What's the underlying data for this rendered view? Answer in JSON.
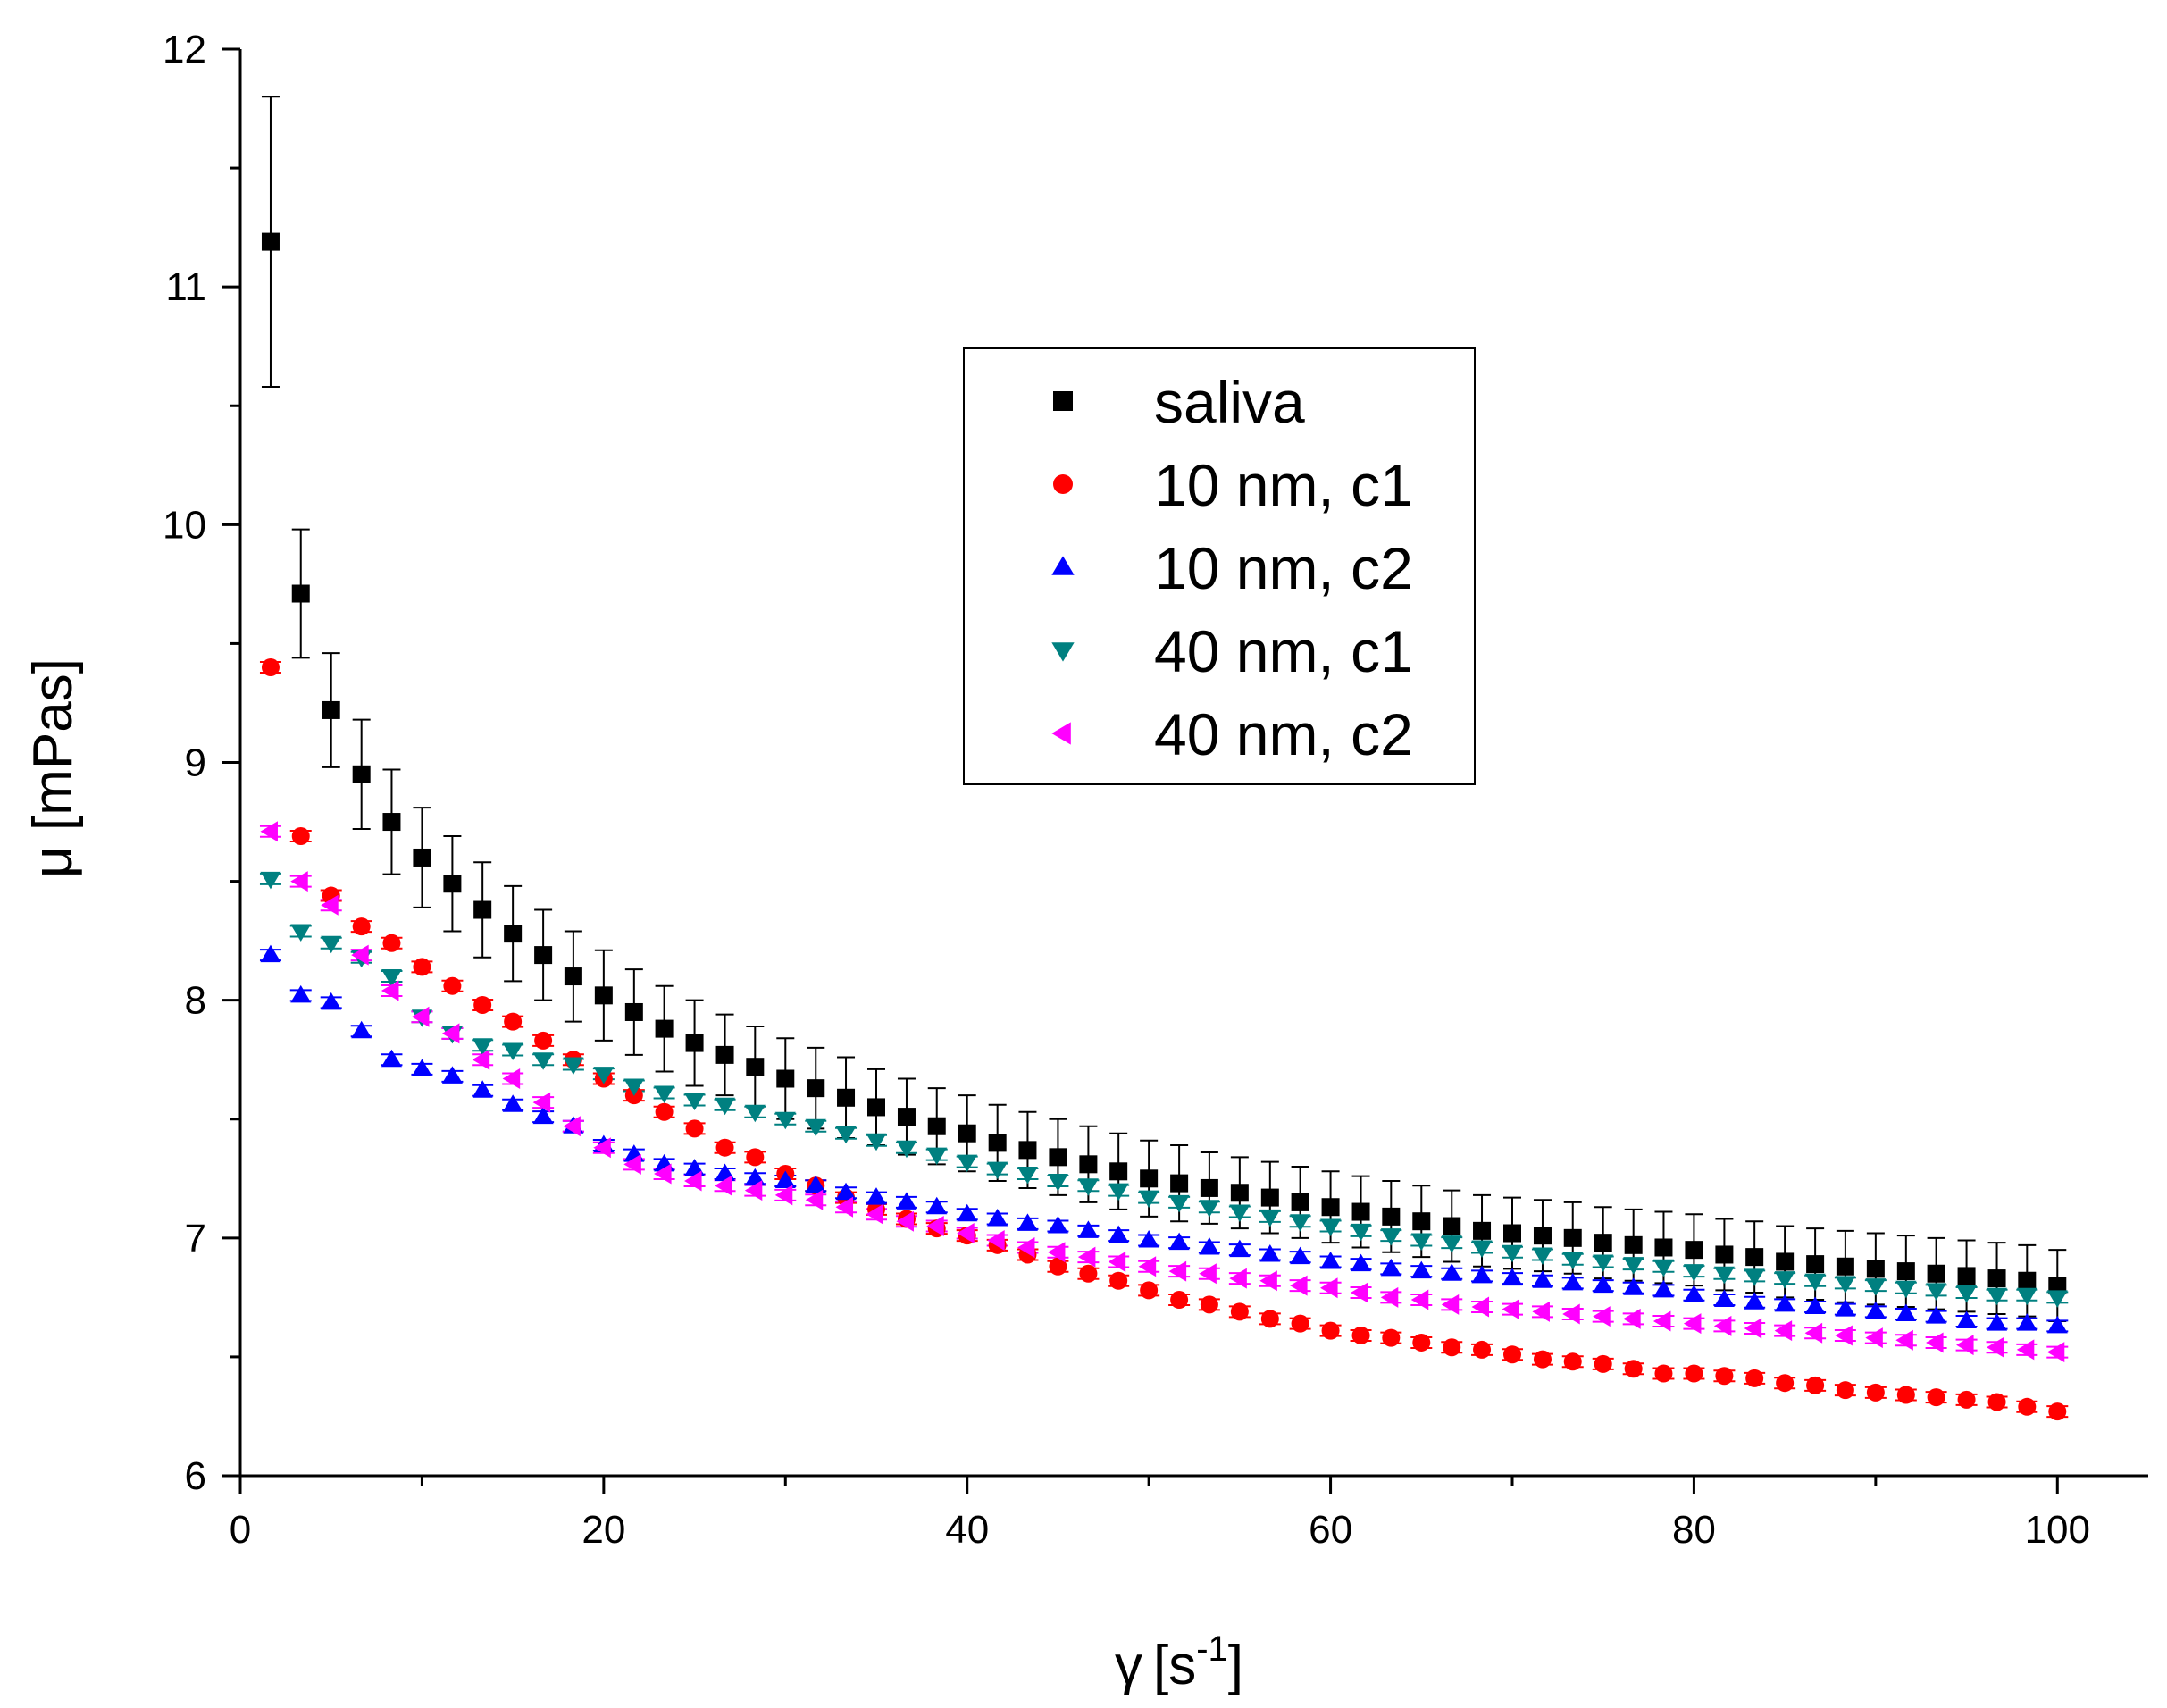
{
  "chart_data": {
    "type": "scatter",
    "title": "",
    "xlabel": {
      "symbol": "γ",
      "unit_prefix": "[s",
      "exponent": "-1",
      "unit_suffix": "]"
    },
    "ylabel": "μ [mPas]",
    "xlim": [
      0,
      105
    ],
    "ylim": [
      6,
      12
    ],
    "xticks": [
      0,
      20,
      40,
      60,
      80,
      100
    ],
    "xtick_labels": [
      "0",
      "20",
      "40",
      "60",
      "80",
      "100"
    ],
    "yticks": [
      6,
      7,
      8,
      9,
      10,
      11,
      12
    ],
    "ytick_labels": [
      "6",
      "7",
      "8",
      "9",
      "10",
      "11",
      "12"
    ],
    "legend_position": "upper-center",
    "x": [
      1.67,
      3.33,
      5.0,
      6.67,
      8.33,
      10.0,
      11.67,
      13.33,
      15.0,
      16.67,
      18.33,
      20.0,
      21.67,
      23.33,
      25.0,
      26.67,
      28.33,
      30.0,
      31.67,
      33.33,
      35.0,
      36.67,
      38.33,
      40.0,
      41.67,
      43.33,
      45.0,
      46.67,
      48.33,
      50.0,
      51.67,
      53.33,
      55.0,
      56.67,
      58.33,
      60.0,
      61.67,
      63.33,
      65.0,
      66.67,
      68.33,
      70.0,
      71.67,
      73.33,
      75.0,
      76.67,
      78.33,
      80.0,
      81.67,
      83.33,
      85.0,
      86.67,
      88.33,
      90.0,
      91.67,
      93.33,
      95.0,
      96.67,
      98.33,
      100.0
    ],
    "series": [
      {
        "name": "saliva",
        "color": "#000000",
        "marker": "square",
        "values": [
          11.19,
          9.71,
          9.22,
          8.95,
          8.75,
          8.6,
          8.49,
          8.38,
          8.28,
          8.19,
          8.1,
          8.02,
          7.95,
          7.88,
          7.82,
          7.77,
          7.72,
          7.67,
          7.63,
          7.59,
          7.55,
          7.51,
          7.47,
          7.44,
          7.4,
          7.37,
          7.34,
          7.31,
          7.28,
          7.25,
          7.23,
          7.21,
          7.19,
          7.17,
          7.15,
          7.13,
          7.11,
          7.09,
          7.07,
          7.05,
          7.03,
          7.02,
          7.01,
          7.0,
          6.98,
          6.97,
          6.96,
          6.95,
          6.93,
          6.92,
          6.9,
          6.89,
          6.88,
          6.87,
          6.86,
          6.85,
          6.84,
          6.83,
          6.82,
          6.8
        ],
        "errors": [
          0.61,
          0.27,
          0.24,
          0.23,
          0.22,
          0.21,
          0.2,
          0.2,
          0.2,
          0.19,
          0.19,
          0.19,
          0.18,
          0.18,
          0.18,
          0.17,
          0.17,
          0.17,
          0.17,
          0.17,
          0.16,
          0.16,
          0.16,
          0.16,
          0.16,
          0.16,
          0.16,
          0.16,
          0.16,
          0.16,
          0.16,
          0.15,
          0.15,
          0.15,
          0.15,
          0.15,
          0.15,
          0.15,
          0.15,
          0.15,
          0.15,
          0.15,
          0.15,
          0.15,
          0.15,
          0.15,
          0.15,
          0.15,
          0.15,
          0.15,
          0.15,
          0.15,
          0.15,
          0.15,
          0.15,
          0.15,
          0.15,
          0.15,
          0.15,
          0.15
        ]
      },
      {
        "name": "10 nm, c1",
        "color": "#ff0000",
        "marker": "circle",
        "values": [
          9.4,
          8.69,
          8.44,
          8.31,
          8.24,
          8.14,
          8.06,
          7.98,
          7.91,
          7.83,
          7.75,
          7.67,
          7.6,
          7.53,
          7.46,
          7.38,
          7.34,
          7.27,
          7.22,
          7.17,
          7.12,
          7.08,
          7.04,
          7.01,
          6.97,
          6.93,
          6.88,
          6.85,
          6.82,
          6.78,
          6.74,
          6.72,
          6.69,
          6.66,
          6.64,
          6.61,
          6.59,
          6.58,
          6.56,
          6.54,
          6.53,
          6.51,
          6.49,
          6.48,
          6.47,
          6.45,
          6.43,
          6.43,
          6.42,
          6.41,
          6.39,
          6.38,
          6.36,
          6.35,
          6.34,
          6.33,
          6.32,
          6.31,
          6.29,
          6.27
        ]
      },
      {
        "name": "10 nm, c2",
        "color": "#0000ff",
        "marker": "triangle-up",
        "values": [
          8.19,
          8.02,
          7.99,
          7.87,
          7.75,
          7.71,
          7.68,
          7.62,
          7.56,
          7.51,
          7.47,
          7.39,
          7.35,
          7.31,
          7.29,
          7.27,
          7.25,
          7.24,
          7.22,
          7.19,
          7.17,
          7.15,
          7.13,
          7.1,
          7.08,
          7.06,
          7.05,
          7.03,
          7.01,
          6.99,
          6.98,
          6.96,
          6.95,
          6.93,
          6.92,
          6.9,
          6.89,
          6.87,
          6.86,
          6.85,
          6.84,
          6.83,
          6.82,
          6.81,
          6.8,
          6.79,
          6.78,
          6.76,
          6.74,
          6.73,
          6.72,
          6.71,
          6.7,
          6.69,
          6.68,
          6.67,
          6.65,
          6.64,
          6.64,
          6.63
        ]
      },
      {
        "name": "40 nm, c1",
        "color": "#008080",
        "marker": "triangle-down",
        "values": [
          8.51,
          8.29,
          8.24,
          8.18,
          8.1,
          7.93,
          7.86,
          7.81,
          7.79,
          7.75,
          7.73,
          7.69,
          7.64,
          7.61,
          7.58,
          7.56,
          7.53,
          7.5,
          7.47,
          7.44,
          7.41,
          7.38,
          7.35,
          7.32,
          7.29,
          7.27,
          7.24,
          7.22,
          7.2,
          7.17,
          7.15,
          7.13,
          7.11,
          7.09,
          7.07,
          7.05,
          7.03,
          7.01,
          6.99,
          6.98,
          6.96,
          6.94,
          6.93,
          6.91,
          6.9,
          6.89,
          6.88,
          6.86,
          6.85,
          6.84,
          6.83,
          6.82,
          6.81,
          6.8,
          6.79,
          6.78,
          6.77,
          6.76,
          6.76,
          6.75
        ]
      },
      {
        "name": "40 nm, c2",
        "color": "#ff00ff",
        "marker": "triangle-left",
        "values": [
          8.71,
          8.5,
          8.4,
          8.19,
          8.04,
          7.93,
          7.86,
          7.75,
          7.67,
          7.57,
          7.47,
          7.38,
          7.31,
          7.27,
          7.24,
          7.22,
          7.2,
          7.18,
          7.16,
          7.13,
          7.1,
          7.07,
          7.05,
          7.02,
          6.99,
          6.96,
          6.94,
          6.92,
          6.9,
          6.88,
          6.86,
          6.85,
          6.83,
          6.82,
          6.8,
          6.79,
          6.77,
          6.75,
          6.74,
          6.72,
          6.71,
          6.7,
          6.69,
          6.68,
          6.67,
          6.66,
          6.65,
          6.64,
          6.63,
          6.62,
          6.61,
          6.6,
          6.59,
          6.58,
          6.57,
          6.56,
          6.55,
          6.54,
          6.53,
          6.52
        ]
      }
    ]
  }
}
